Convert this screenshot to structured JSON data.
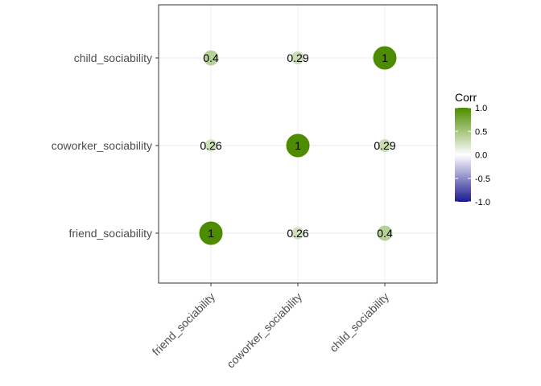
{
  "chart_data": {
    "type": "heatmap",
    "variables": [
      "friend_sociability",
      "coworker_sociability",
      "child_sociability"
    ],
    "matrix": [
      [
        1,
        0.26,
        0.4
      ],
      [
        0.26,
        1,
        0.29
      ],
      [
        0.4,
        0.29,
        1
      ]
    ],
    "cell_labels": [
      [
        "1",
        "0.26",
        "0.4"
      ],
      [
        "0.26",
        "1",
        "0.29"
      ],
      [
        "0.4",
        "0.29",
        "1"
      ]
    ],
    "legend": {
      "title": "Corr",
      "range": [
        -1,
        1
      ],
      "ticks": [
        1.0,
        0.5,
        0.0,
        -0.5,
        -1.0
      ],
      "tick_labels": [
        "1.0",
        "0.5",
        "0.0",
        "-0.5",
        "-1.0"
      ],
      "placement": "right"
    },
    "colors": {
      "low": "#1a1a8f",
      "mid": "#ffffff",
      "high": "#4d8b00",
      "grid": "#ebebeb",
      "panel_border": "#333333"
    },
    "grid": true
  }
}
